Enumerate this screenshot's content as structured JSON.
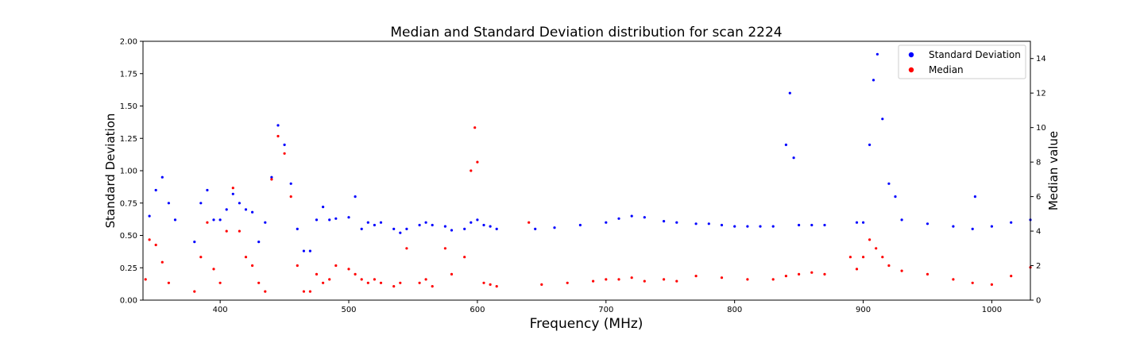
{
  "chart_data": {
    "type": "scatter",
    "title": "Median and Standard Deviation distribution for scan 2224",
    "xlabel": "Frequency (MHz)",
    "ylabel_left": "Standard Deviation",
    "ylabel_right": "Median value",
    "xlim": [
      340,
      1030
    ],
    "ylim_left": [
      0,
      2.0
    ],
    "ylim_right": [
      0,
      15
    ],
    "x_ticks": [
      400,
      500,
      600,
      700,
      800,
      900,
      1000
    ],
    "y_left_ticks": [
      0.0,
      0.25,
      0.5,
      0.75,
      1.0,
      1.25,
      1.5,
      1.75,
      2.0
    ],
    "y_left_tick_labels": [
      "0.00",
      "0.25",
      "0.50",
      "0.75",
      "1.00",
      "1.25",
      "1.50",
      "1.75",
      "2.00"
    ],
    "y_right_ticks": [
      0,
      2,
      4,
      6,
      8,
      10,
      12,
      14
    ],
    "grid": false,
    "legend_position": "top-right",
    "colors": {
      "std": "#0000ff",
      "median": "#ff0000"
    },
    "series": [
      {
        "name": "Standard Deviation",
        "axis": "left",
        "color": "#0000ff",
        "x": [
          345,
          350,
          355,
          360,
          365,
          380,
          385,
          390,
          395,
          400,
          405,
          410,
          415,
          420,
          425,
          430,
          435,
          440,
          445,
          450,
          455,
          460,
          465,
          470,
          475,
          480,
          485,
          490,
          500,
          505,
          510,
          515,
          520,
          525,
          535,
          540,
          545,
          555,
          560,
          565,
          575,
          580,
          590,
          595,
          600,
          605,
          610,
          615,
          645,
          660,
          680,
          700,
          710,
          720,
          730,
          745,
          755,
          770,
          780,
          790,
          800,
          810,
          820,
          830,
          840,
          843,
          846,
          850,
          860,
          870,
          895,
          900,
          905,
          908,
          911,
          915,
          920,
          925,
          930,
          950,
          970,
          985,
          987,
          1000,
          1015,
          1030
        ],
        "y": [
          0.65,
          0.85,
          0.95,
          0.75,
          0.62,
          0.45,
          0.75,
          0.85,
          0.62,
          0.62,
          0.7,
          0.82,
          0.75,
          0.7,
          0.68,
          0.45,
          0.6,
          0.95,
          1.35,
          1.2,
          0.9,
          0.55,
          0.38,
          0.38,
          0.62,
          0.72,
          0.62,
          0.63,
          0.64,
          0.8,
          0.55,
          0.6,
          0.58,
          0.6,
          0.55,
          0.52,
          0.55,
          0.58,
          0.6,
          0.58,
          0.57,
          0.54,
          0.55,
          0.6,
          0.62,
          0.58,
          0.57,
          0.55,
          0.55,
          0.56,
          0.58,
          0.6,
          0.63,
          0.65,
          0.64,
          0.61,
          0.6,
          0.59,
          0.59,
          0.58,
          0.57,
          0.57,
          0.57,
          0.57,
          1.2,
          1.6,
          1.1,
          0.58,
          0.58,
          0.58,
          0.6,
          0.6,
          1.2,
          1.7,
          1.9,
          1.4,
          0.9,
          0.8,
          0.62,
          0.59,
          0.57,
          0.55,
          0.8,
          0.57,
          0.6,
          0.62
        ]
      },
      {
        "name": "Median",
        "axis": "right",
        "color": "#ff0000",
        "x": [
          342,
          345,
          350,
          355,
          360,
          380,
          385,
          390,
          395,
          400,
          405,
          410,
          415,
          420,
          425,
          430,
          435,
          440,
          445,
          450,
          455,
          460,
          465,
          470,
          475,
          480,
          485,
          490,
          500,
          505,
          510,
          515,
          520,
          525,
          535,
          540,
          545,
          555,
          560,
          565,
          575,
          580,
          590,
          595,
          598,
          600,
          605,
          610,
          615,
          640,
          650,
          670,
          690,
          700,
          710,
          720,
          730,
          745,
          755,
          770,
          790,
          810,
          830,
          840,
          850,
          860,
          870,
          890,
          895,
          900,
          905,
          910,
          915,
          920,
          930,
          950,
          970,
          985,
          1000,
          1015,
          1030
        ],
        "y": [
          1.2,
          3.5,
          3.2,
          2.2,
          1.0,
          0.5,
          2.5,
          4.5,
          1.8,
          1.0,
          4.0,
          6.5,
          4.0,
          2.5,
          2.0,
          1.0,
          0.5,
          7.0,
          9.5,
          8.5,
          6.0,
          2.0,
          0.5,
          0.5,
          1.5,
          1.0,
          1.2,
          2.0,
          1.8,
          1.5,
          1.2,
          1.0,
          1.2,
          1.0,
          0.8,
          1.0,
          3.0,
          1.0,
          1.2,
          0.8,
          3.0,
          1.5,
          2.5,
          7.5,
          10.0,
          8.0,
          1.0,
          0.9,
          0.8,
          4.5,
          0.9,
          1.0,
          1.1,
          1.2,
          1.2,
          1.3,
          1.1,
          1.2,
          1.1,
          1.4,
          1.3,
          1.2,
          1.2,
          1.4,
          1.5,
          1.6,
          1.5,
          2.5,
          1.8,
          2.5,
          3.5,
          3.0,
          2.5,
          2.0,
          1.7,
          1.5,
          1.2,
          1.0,
          0.9,
          1.4,
          1.9
        ]
      }
    ]
  }
}
